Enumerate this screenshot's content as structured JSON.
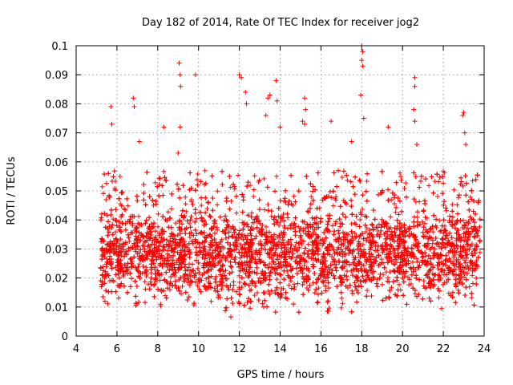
{
  "chart_data": {
    "type": "scatter",
    "title": "Day 182 of 2014, Rate Of TEC Index for receiver jog2",
    "xlabel": "GPS time / hours",
    "ylabel": "ROTI / TECUs",
    "xlim": [
      4,
      24
    ],
    "ylim": [
      0,
      0.1
    ],
    "xticks": [
      4,
      6,
      8,
      10,
      12,
      14,
      16,
      18,
      20,
      22,
      24
    ],
    "xtick_labels": [
      "4",
      "6",
      "8",
      "10",
      "12",
      "14",
      "16",
      "18",
      "20",
      "22",
      "24"
    ],
    "yticks": [
      0,
      0.01,
      0.02,
      0.03,
      0.04,
      0.05,
      0.06,
      0.07,
      0.08,
      0.09,
      0.1
    ],
    "ytick_labels": [
      "0",
      "0.01",
      "0.02",
      "0.03",
      "0.04",
      "0.05",
      "0.06",
      "0.07",
      "0.08",
      "0.09",
      "0.1"
    ],
    "grid": true,
    "marker": "+",
    "color": "#ff0000",
    "series": [
      {
        "name": "jog2",
        "x_range": [
          5.2,
          23.8
        ],
        "typical_range": [
          0.005,
          0.05
        ],
        "outliers": [
          {
            "x": 5.7,
            "y": 0.079
          },
          {
            "x": 5.75,
            "y": 0.073
          },
          {
            "x": 6.8,
            "y": 0.082
          },
          {
            "x": 6.85,
            "y": 0.079
          },
          {
            "x": 7.1,
            "y": 0.067
          },
          {
            "x": 8.3,
            "y": 0.072
          },
          {
            "x": 9.05,
            "y": 0.094
          },
          {
            "x": 9.1,
            "y": 0.09
          },
          {
            "x": 9.12,
            "y": 0.086
          },
          {
            "x": 9.1,
            "y": 0.072
          },
          {
            "x": 9.0,
            "y": 0.063
          },
          {
            "x": 9.85,
            "y": 0.09
          },
          {
            "x": 12.0,
            "y": 0.09
          },
          {
            "x": 12.1,
            "y": 0.089
          },
          {
            "x": 12.3,
            "y": 0.084
          },
          {
            "x": 12.35,
            "y": 0.08
          },
          {
            "x": 13.4,
            "y": 0.082
          },
          {
            "x": 13.5,
            "y": 0.083
          },
          {
            "x": 13.8,
            "y": 0.088
          },
          {
            "x": 13.85,
            "y": 0.081
          },
          {
            "x": 13.3,
            "y": 0.076
          },
          {
            "x": 14.0,
            "y": 0.072
          },
          {
            "x": 15.2,
            "y": 0.082
          },
          {
            "x": 15.25,
            "y": 0.078
          },
          {
            "x": 15.1,
            "y": 0.074
          },
          {
            "x": 15.2,
            "y": 0.073
          },
          {
            "x": 16.5,
            "y": 0.074
          },
          {
            "x": 17.5,
            "y": 0.067
          },
          {
            "x": 18.0,
            "y": 0.1
          },
          {
            "x": 18.05,
            "y": 0.098
          },
          {
            "x": 18.0,
            "y": 0.095
          },
          {
            "x": 18.05,
            "y": 0.093
          },
          {
            "x": 17.95,
            "y": 0.083
          },
          {
            "x": 18.1,
            "y": 0.075
          },
          {
            "x": 19.3,
            "y": 0.072
          },
          {
            "x": 20.6,
            "y": 0.089
          },
          {
            "x": 20.6,
            "y": 0.086
          },
          {
            "x": 20.55,
            "y": 0.078
          },
          {
            "x": 20.6,
            "y": 0.074
          },
          {
            "x": 20.7,
            "y": 0.066
          },
          {
            "x": 23.0,
            "y": 0.077
          },
          {
            "x": 22.95,
            "y": 0.076
          },
          {
            "x": 23.05,
            "y": 0.07
          },
          {
            "x": 23.1,
            "y": 0.066
          }
        ]
      }
    ]
  }
}
